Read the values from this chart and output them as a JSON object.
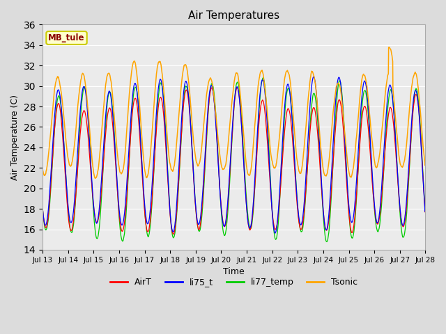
{
  "title": "Air Temperatures",
  "xlabel": "Time",
  "ylabel": "Air Temperature (C)",
  "ylim": [
    14,
    36
  ],
  "annotation_text": "MB_tule",
  "annotation_color": "#8B0000",
  "annotation_bg": "#FFFFCC",
  "annotation_border": "#CCCC00",
  "legend_labels": [
    "AirT",
    "li75_t",
    "li77_temp",
    "Tsonic"
  ],
  "legend_colors": [
    "#FF0000",
    "#0000FF",
    "#00CC00",
    "#FFA500"
  ],
  "fig_bg": "#DCDCDC",
  "plot_bg": "#EBEBEB",
  "grid_color": "#FFFFFF",
  "x_tick_labels": [
    "Jul 13",
    "Jul 14",
    "Jul 15",
    "Jul 16",
    "Jul 17",
    "Jul 18",
    "Jul 19",
    "Jul 20",
    "Jul 21",
    "Jul 22",
    "Jul 23",
    "Jul 24",
    "Jul 25",
    "Jul 26",
    "Jul 27",
    "Jul 28"
  ],
  "yticks": [
    14,
    16,
    18,
    20,
    22,
    24,
    26,
    28,
    30,
    32,
    34,
    36
  ]
}
